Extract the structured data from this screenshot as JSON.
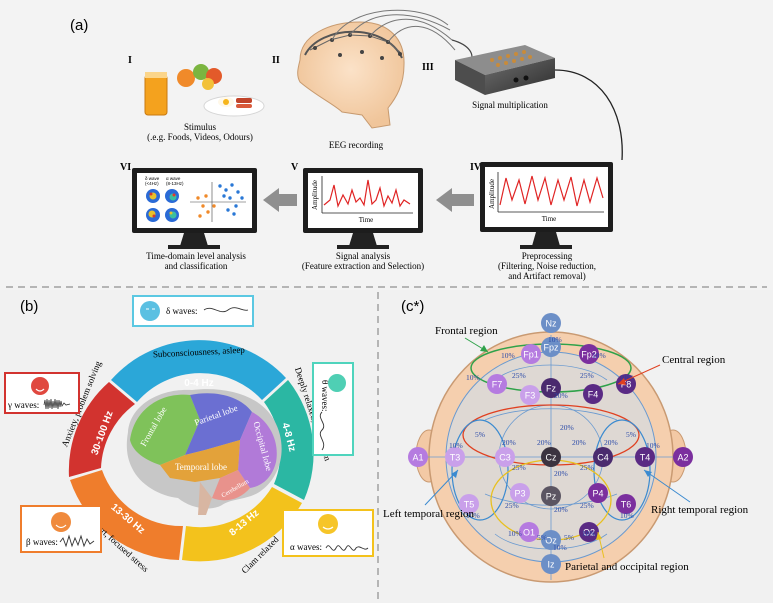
{
  "panel_a": {
    "label": "(a)",
    "steps": {
      "i": {
        "roman": "I",
        "line1": "Stimulus",
        "line2": "(.e.g. Foods, Videos, Odours)"
      },
      "ii": {
        "roman": "II",
        "line1": "EEG recording"
      },
      "iii": {
        "roman": "III",
        "line1": "Signal multiplication"
      },
      "iv": {
        "roman": "IV",
        "line1": "Preprocessing",
        "line2": "(Filtering, Noise reduction,",
        "line3": "and Artifact removal)"
      },
      "v": {
        "roman": "V",
        "line1": "Signal analysis",
        "line2": "(Feature extraction and Selection)"
      },
      "vi": {
        "roman": "VI",
        "line1": "Time-domain level analysis",
        "line2": "and classification"
      }
    },
    "plot_axis": {
      "ylabel": "Amplitude",
      "xlabel": "Time"
    },
    "vi_screen": {
      "a1": "δ wave",
      "a2": "(<4Hz)",
      "b1": "α wave",
      "b2": "(8-13Hz)"
    }
  },
  "panel_b": {
    "label": "(b)",
    "bands": [
      {
        "freq": "0-4 Hz",
        "state": "Subconsciousness, asleep",
        "color": "#2ba7d8"
      },
      {
        "freq": "4-8 Hz",
        "state": "Deeply relaxed, meditation",
        "color": "#2bb7a3"
      },
      {
        "freq": "8-13 Hz",
        "state": "Clam relaxed",
        "color": "#f3c21c"
      },
      {
        "freq": "13-30 Hz",
        "state": "Alert, focused stress",
        "color": "#ef7d2c"
      },
      {
        "freq": "30-100 Hz",
        "state": "Anxiety, problem solving",
        "color": "#d2332f"
      }
    ],
    "waves": {
      "delta": "δ waves:",
      "theta": "θ waves:",
      "alpha": "α waves:",
      "beta": "β waves:",
      "gamma": "γ waves:"
    },
    "lobes": {
      "frontal": "Frontal lobe",
      "parietal": "Parietal lobe",
      "occipital": "Occipital lobe",
      "temporal": "Temporal lobe",
      "cerebellum": "Cerebellum"
    }
  },
  "panel_c": {
    "label": "(c*)",
    "regions": {
      "frontal": "Frontal region",
      "central": "Central region",
      "left_temporal": "Left temporal region",
      "right_temporal": "Right temporal region",
      "parietal_occipital": "Parietal and occipital region"
    },
    "electrodes": [
      "Nz",
      "Fpz",
      "Fp1",
      "Fp2",
      "F7",
      "F3",
      "Fz",
      "F4",
      "F8",
      "A1",
      "T3",
      "C3",
      "Cz",
      "C4",
      "T4",
      "A2",
      "T5",
      "P3",
      "Pz",
      "P4",
      "T6",
      "O1",
      "Oz",
      "O2",
      "Iz"
    ],
    "percent_labels": [
      "10%",
      "20%",
      "25%",
      "10%",
      "5%"
    ]
  }
}
